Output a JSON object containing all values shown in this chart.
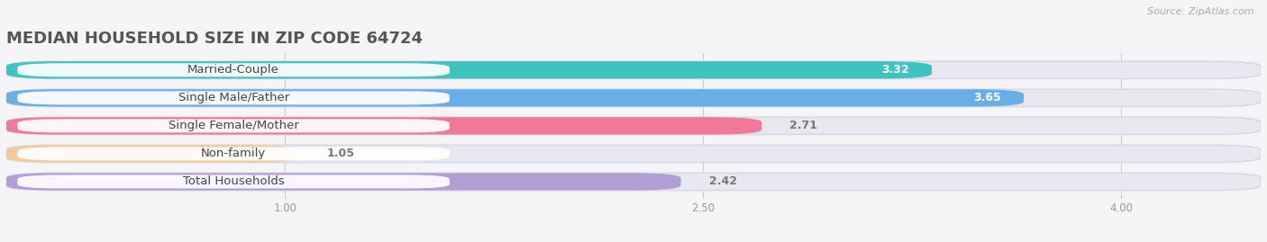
{
  "title": "MEDIAN HOUSEHOLD SIZE IN ZIP CODE 64724",
  "source": "Source: ZipAtlas.com",
  "categories": [
    "Married-Couple",
    "Single Male/Father",
    "Single Female/Mother",
    "Non-family",
    "Total Households"
  ],
  "values": [
    3.32,
    3.65,
    2.71,
    1.05,
    2.42
  ],
  "bar_colors": [
    "#3cc4c0",
    "#6aaee8",
    "#f07898",
    "#f5c898",
    "#b09ed4"
  ],
  "track_color": "#e8e8f0",
  "value_colors_in": [
    "#ffffff",
    "#ffffff",
    "#666666",
    "#888888",
    "#666666"
  ],
  "value_in_bar": [
    true,
    true,
    false,
    false,
    false
  ],
  "xlim_left": 0.0,
  "xlim_right": 4.5,
  "xdata_min": 1.0,
  "xdata_max": 4.0,
  "xticks": [
    1.0,
    2.5,
    4.0
  ],
  "bar_height": 0.62,
  "background_color": "#f5f5f8",
  "title_fontsize": 13,
  "label_fontsize": 9.5,
  "value_fontsize": 9,
  "source_fontsize": 8
}
